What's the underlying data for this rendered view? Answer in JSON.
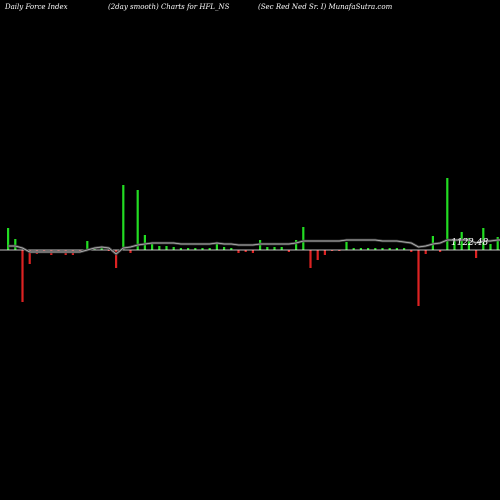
{
  "header": {
    "left": "Daily Force  Index",
    "center": "(2day smooth) Charts for HFL_NS",
    "right": "(Sec Red Ned Sr. I) MunafaSutra.com"
  },
  "colors": {
    "background": "#000000",
    "positive": "#22dd22",
    "negative": "#dd2222",
    "baseline": "#ffffff",
    "smooth_line_dark": "#444444",
    "smooth_line_light": "#bbbbbb"
  },
  "chart_data": {
    "type": "bar",
    "title": "",
    "xlabel": "",
    "ylabel": "",
    "last_value_label": "1122.48",
    "grid": false,
    "values": [
      22,
      11,
      -52,
      -14,
      -4,
      -1,
      -5,
      -1,
      -5,
      -5,
      -2,
      9,
      3,
      3,
      -1,
      -18,
      65,
      -3,
      60,
      15,
      7,
      4,
      4,
      3,
      2,
      2,
      2,
      2,
      2,
      6,
      3,
      2,
      -3,
      -2,
      -3,
      10,
      3,
      3,
      3,
      -2,
      10,
      23,
      -18,
      -10,
      -5,
      -1,
      -1,
      8,
      2,
      2,
      2,
      2,
      2,
      2,
      2,
      2,
      -2,
      -56,
      -4,
      14,
      -2,
      72,
      9,
      18,
      12,
      -8,
      22,
      6,
      13,
      6,
      6,
      -6
    ],
    "smooth": [
      4,
      4,
      2,
      -2,
      -2,
      -2,
      -2,
      -2,
      -2,
      -2,
      -2,
      0,
      2,
      3,
      2,
      -4,
      2,
      3,
      5,
      6,
      7,
      7,
      7,
      7,
      6,
      6,
      6,
      6,
      6,
      7,
      6,
      6,
      5,
      5,
      5,
      6,
      6,
      6,
      6,
      6,
      7,
      9,
      9,
      9,
      9,
      9,
      9,
      10,
      10,
      10,
      10,
      10,
      9,
      9,
      9,
      8,
      7,
      3,
      4,
      6,
      7,
      10,
      10,
      10,
      10,
      7,
      9,
      9,
      10,
      10,
      10,
      8
    ]
  }
}
